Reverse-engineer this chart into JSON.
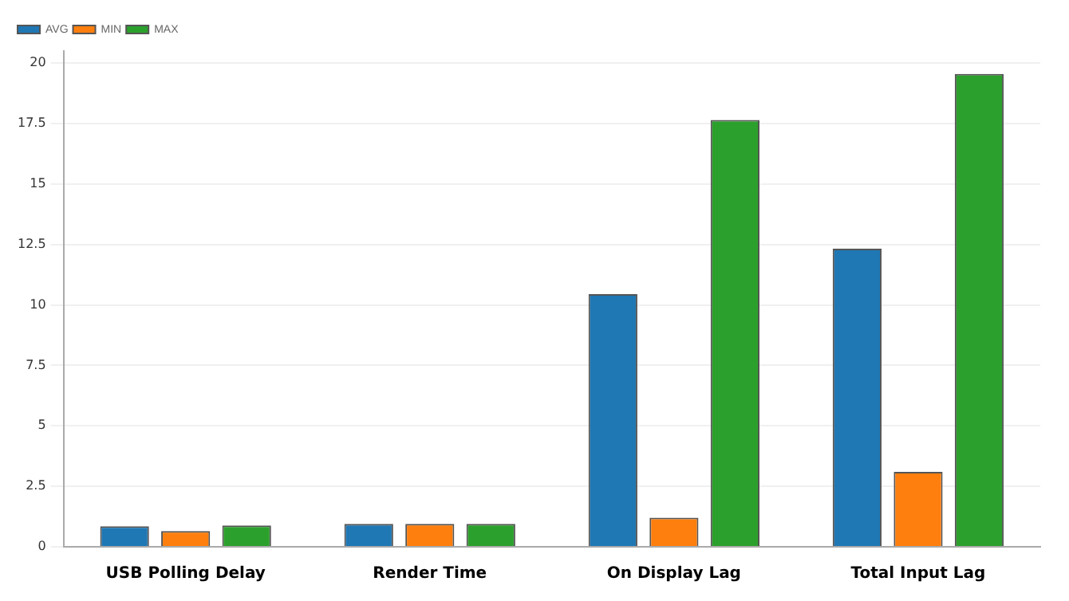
{
  "chart_data": {
    "type": "bar",
    "categories": [
      "USB Polling Delay",
      "Render Time",
      "On Display Lag",
      "Total Input Lag"
    ],
    "series": [
      {
        "name": "AVG",
        "color": "#1f77b4",
        "values": [
          0.85,
          0.95,
          10.45,
          12.33
        ]
      },
      {
        "name": "MIN",
        "color": "#ff7f0e",
        "values": [
          0.65,
          0.95,
          1.2,
          3.1
        ]
      },
      {
        "name": "MAX",
        "color": "#2ca02c",
        "values": [
          0.88,
          0.95,
          17.65,
          19.55
        ]
      }
    ],
    "ylim": [
      0,
      20.5
    ],
    "yticks": [
      0,
      2.5,
      5,
      7.5,
      10,
      12.5,
      15,
      17.5,
      20
    ],
    "grid": "y",
    "legend": "top left"
  }
}
